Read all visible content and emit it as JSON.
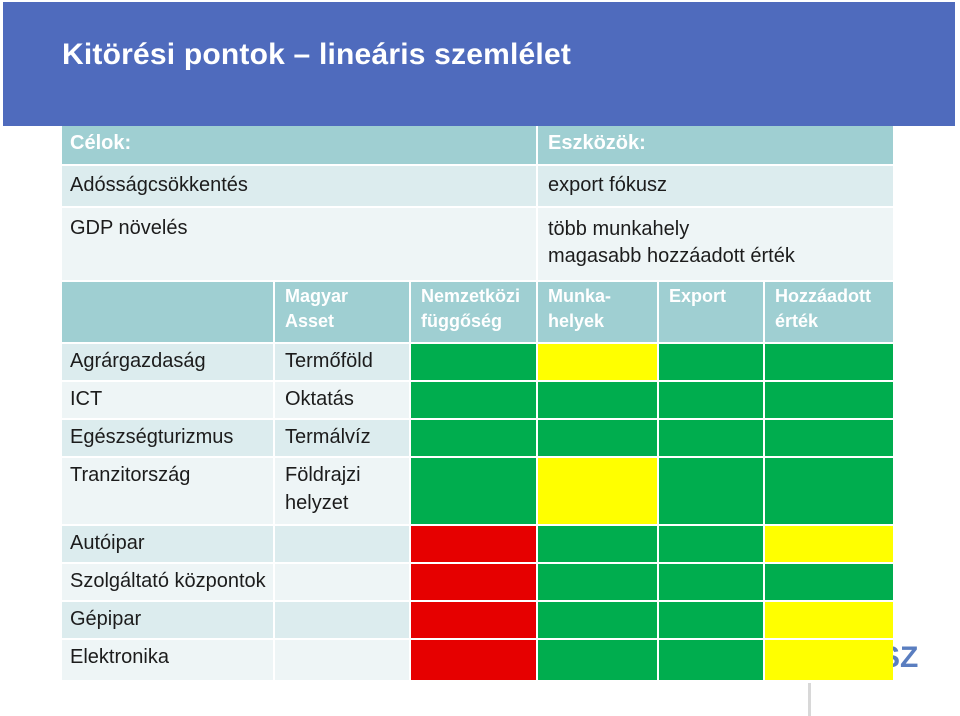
{
  "title": "Kitörési pontok – lineáris szemlélet",
  "goals_label": "Célok:",
  "tools_label": "Eszközök:",
  "goals": [
    "Adósságcsökkentés",
    "GDP növelés"
  ],
  "tools": [
    "export fókusz",
    "több munkahely",
    "magasabb hozzáadott érték"
  ],
  "headers": {
    "asset": [
      "Magyar",
      "Asset"
    ],
    "dependency": [
      "Nemzetközi",
      "függőség"
    ],
    "jobs": [
      "Munka-",
      "helyek"
    ],
    "export": "Export",
    "value_added": [
      "Hozzáadott",
      "érték"
    ]
  },
  "rows": [
    {
      "sector": "Agrárgazdaság",
      "asset": [
        "Termőföld"
      ],
      "ratings": [
        "green",
        "yellow",
        "green",
        "green"
      ]
    },
    {
      "sector": "ICT",
      "asset": [
        "Oktatás"
      ],
      "ratings": [
        "green",
        "green",
        "green",
        "green"
      ]
    },
    {
      "sector": "Egészségturizmus",
      "asset": [
        "Termálvíz"
      ],
      "ratings": [
        "green",
        "green",
        "green",
        "green"
      ]
    },
    {
      "sector": "Tranzitország",
      "asset": [
        "Földrajzi",
        "helyzet"
      ],
      "ratings": [
        "green",
        "yellow",
        "green",
        "green"
      ]
    },
    {
      "sector": "Autóipar",
      "asset": [],
      "ratings": [
        "red",
        "green",
        "green",
        "yellow"
      ]
    },
    {
      "sector": "Szolgáltató központok",
      "asset": [],
      "ratings": [
        "red",
        "green",
        "green",
        "green"
      ]
    },
    {
      "sector": "Gépipar",
      "asset": [],
      "ratings": [
        "red",
        "green",
        "green",
        "yellow"
      ]
    },
    {
      "sector": "Elektronika",
      "asset": [],
      "ratings": [
        "red",
        "green",
        "green",
        "yellow"
      ]
    }
  ],
  "colors": {
    "title_bg": "#4f6bbd",
    "header_bg": "#9fcfd2",
    "light_bg": "#dcecee",
    "pale_bg": "#eef5f6",
    "green": "#00ad4e",
    "yellow": "#ffff00",
    "red": "#e60000"
  },
  "watermark_text": "SZ"
}
